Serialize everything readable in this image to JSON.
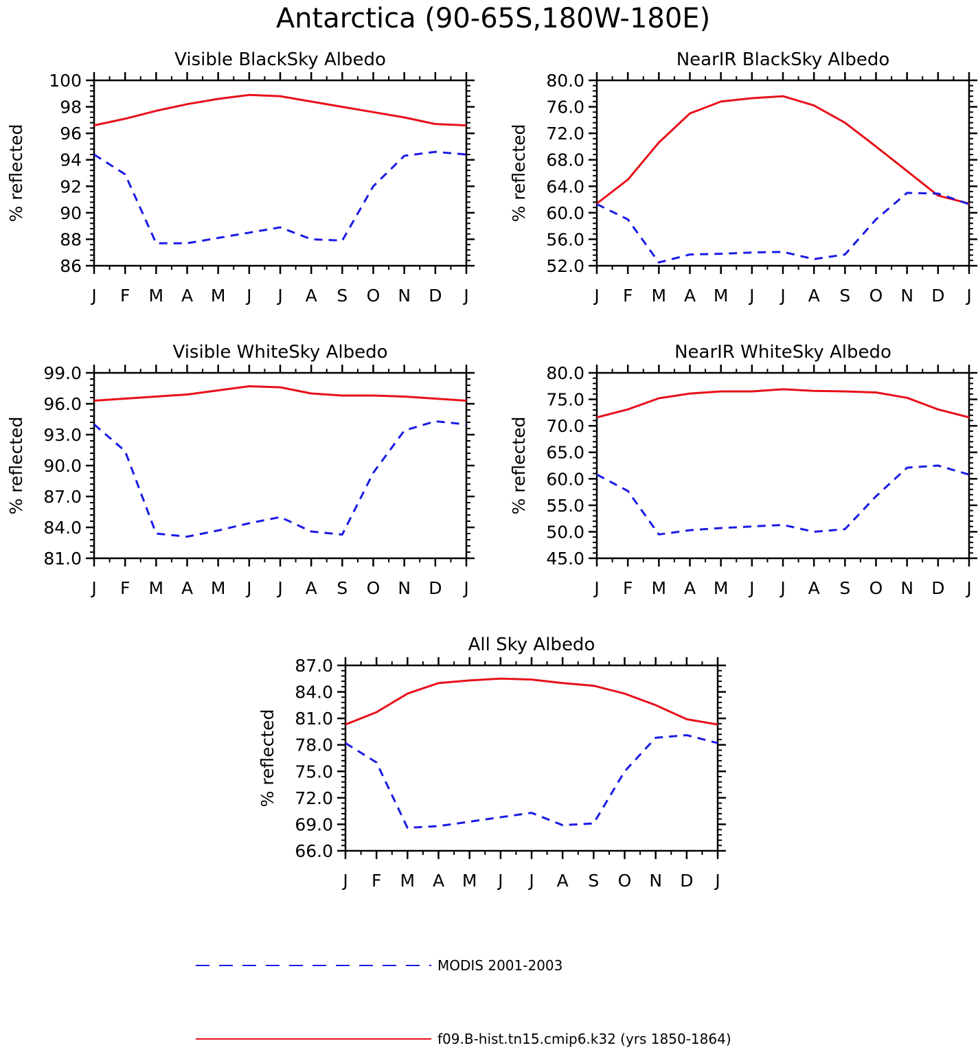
{
  "title": "Antarctica (90-65S,180W-180E)",
  "colors": {
    "model": "#e8101a",
    "obs": "#1a1ae6"
  },
  "legend": {
    "obs_label": "MODIS 2001-2003",
    "model_label": "f09.B-hist.tn15.cmip6.k32 (yrs 1850-1864)"
  },
  "chart_data": [
    {
      "type": "line",
      "title": "Visible BlackSky Albedo",
      "ylabel": "% reflected",
      "x": [
        "J",
        "F",
        "M",
        "A",
        "M",
        "J",
        "J",
        "A",
        "S",
        "O",
        "N",
        "D",
        "J"
      ],
      "ylim": [
        86,
        100
      ],
      "yticks": [
        86,
        88,
        90,
        92,
        94,
        96,
        98,
        100
      ],
      "ytick_labels": [
        "86",
        "88",
        "90",
        "92",
        "94",
        "96",
        "98",
        "100"
      ],
      "series": [
        {
          "name": "f09.B-hist.tn15.cmip6.k32 (yrs 1850-1864)",
          "style": "solid",
          "color": "#e8101a",
          "values": [
            96.6,
            97.1,
            97.7,
            98.2,
            98.6,
            98.9,
            98.8,
            98.4,
            98.0,
            97.6,
            97.2,
            96.7,
            96.6
          ]
        },
        {
          "name": "MODIS 2001-2003",
          "style": "dashed",
          "color": "#1a1ae6",
          "values": [
            94.4,
            92.9,
            87.7,
            87.7,
            88.1,
            88.5,
            88.9,
            88.0,
            87.9,
            92.0,
            94.3,
            94.6,
            94.4
          ]
        }
      ]
    },
    {
      "type": "line",
      "title": "NearIR BlackSky Albedo",
      "ylabel": "% reflected",
      "x": [
        "J",
        "F",
        "M",
        "A",
        "M",
        "J",
        "J",
        "A",
        "S",
        "O",
        "N",
        "D",
        "J"
      ],
      "ylim": [
        52,
        80
      ],
      "yticks": [
        52,
        56,
        60,
        64,
        68,
        72,
        76,
        80
      ],
      "ytick_labels": [
        "52.0",
        "56.0",
        "60.0",
        "64.0",
        "68.0",
        "72.0",
        "76.0",
        "80.0"
      ],
      "series": [
        {
          "name": "f09.B-hist.tn15.cmip6.k32 (yrs 1850-1864)",
          "style": "solid",
          "color": "#e8101a",
          "values": [
            61.4,
            65.0,
            70.6,
            75.0,
            76.8,
            77.3,
            77.6,
            76.2,
            73.6,
            70.0,
            66.3,
            62.6,
            61.4
          ]
        },
        {
          "name": "MODIS 2001-2003",
          "style": "dashed",
          "color": "#1a1ae6",
          "values": [
            61.3,
            59.0,
            52.5,
            53.7,
            53.8,
            54.0,
            54.1,
            53.0,
            53.7,
            59.0,
            63.0,
            62.9,
            61.3
          ]
        }
      ]
    },
    {
      "type": "line",
      "title": "Visible WhiteSky Albedo",
      "ylabel": "% reflected",
      "x": [
        "J",
        "F",
        "M",
        "A",
        "M",
        "J",
        "J",
        "A",
        "S",
        "O",
        "N",
        "D",
        "J"
      ],
      "ylim": [
        81,
        99
      ],
      "yticks": [
        81,
        84,
        87,
        90,
        93,
        96,
        99
      ],
      "ytick_labels": [
        "81.0",
        "84.0",
        "87.0",
        "90.0",
        "93.0",
        "96.0",
        "99.0"
      ],
      "series": [
        {
          "name": "f09.B-hist.tn15.cmip6.k32 (yrs 1850-1864)",
          "style": "solid",
          "color": "#e8101a",
          "values": [
            96.3,
            96.5,
            96.7,
            96.9,
            97.3,
            97.7,
            97.6,
            97.0,
            96.8,
            96.8,
            96.7,
            96.5,
            96.3
          ]
        },
        {
          "name": "MODIS 2001-2003",
          "style": "dashed",
          "color": "#1a1ae6",
          "values": [
            94.0,
            91.4,
            83.4,
            83.1,
            83.7,
            84.4,
            85.0,
            83.6,
            83.3,
            89.3,
            93.4,
            94.3,
            94.0
          ]
        }
      ]
    },
    {
      "type": "line",
      "title": "NearIR WhiteSky Albedo",
      "ylabel": "% reflected",
      "x": [
        "J",
        "F",
        "M",
        "A",
        "M",
        "J",
        "J",
        "A",
        "S",
        "O",
        "N",
        "D",
        "J"
      ],
      "ylim": [
        45,
        80
      ],
      "yticks": [
        45,
        50,
        55,
        60,
        65,
        70,
        75,
        80
      ],
      "ytick_labels": [
        "45.0",
        "50.0",
        "55.0",
        "60.0",
        "65.0",
        "70.0",
        "75.0",
        "80.0"
      ],
      "series": [
        {
          "name": "f09.B-hist.tn15.cmip6.k32 (yrs 1850-1864)",
          "style": "solid",
          "color": "#e8101a",
          "values": [
            71.6,
            73.1,
            75.2,
            76.1,
            76.5,
            76.5,
            76.9,
            76.6,
            76.5,
            76.3,
            75.3,
            73.1,
            71.6
          ]
        },
        {
          "name": "MODIS 2001-2003",
          "style": "dashed",
          "color": "#1a1ae6",
          "values": [
            60.8,
            57.7,
            49.5,
            50.3,
            50.7,
            51.0,
            51.3,
            50.0,
            50.5,
            56.7,
            62.1,
            62.5,
            60.8
          ]
        }
      ]
    },
    {
      "type": "line",
      "title": "All Sky Albedo",
      "ylabel": "% reflected",
      "x": [
        "J",
        "F",
        "M",
        "A",
        "M",
        "J",
        "J",
        "A",
        "S",
        "O",
        "N",
        "D",
        "J"
      ],
      "ylim": [
        66,
        87
      ],
      "yticks": [
        66,
        69,
        72,
        75,
        78,
        81,
        84,
        87
      ],
      "ytick_labels": [
        "66.0",
        "69.0",
        "72.0",
        "75.0",
        "78.0",
        "81.0",
        "84.0",
        "87.0"
      ],
      "series": [
        {
          "name": "f09.B-hist.tn15.cmip6.k32 (yrs 1850-1864)",
          "style": "solid",
          "color": "#e8101a",
          "values": [
            80.3,
            81.7,
            83.8,
            85.0,
            85.3,
            85.5,
            85.4,
            85.0,
            84.7,
            83.8,
            82.5,
            80.9,
            80.3
          ]
        },
        {
          "name": "MODIS 2001-2003",
          "style": "dashed",
          "color": "#1a1ae6",
          "values": [
            78.2,
            76.0,
            68.6,
            68.8,
            69.3,
            69.8,
            70.3,
            68.9,
            69.1,
            75.0,
            78.8,
            79.1,
            78.2
          ]
        }
      ]
    }
  ]
}
